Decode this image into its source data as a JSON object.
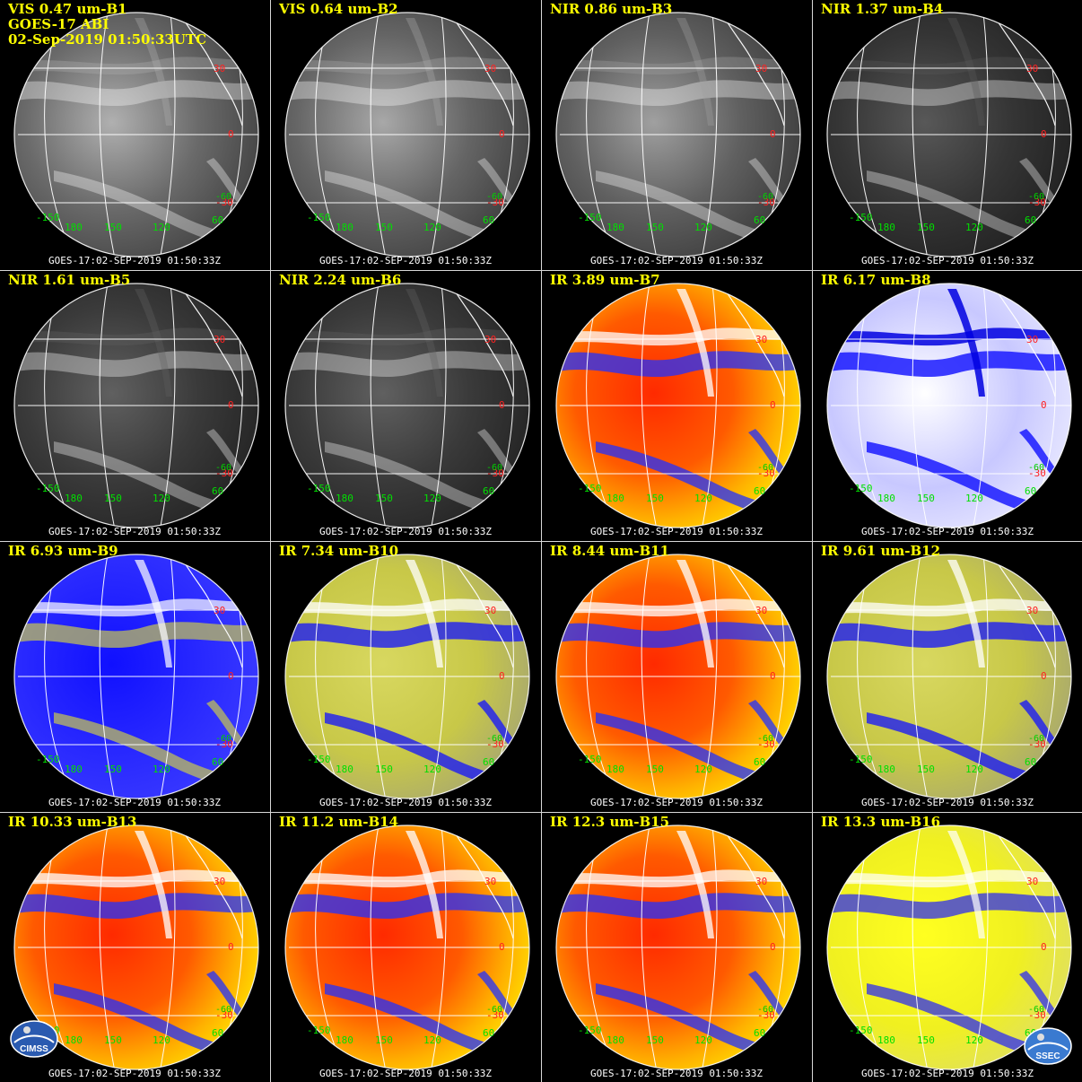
{
  "header": {
    "satellite": "GOES-17 ABI",
    "datetime": "02-Sep-2019 01:50:33UTC"
  },
  "footer_text": "GOES-17:02-SEP-2019 01:50:33Z",
  "grid_labels": {
    "lat": [
      "30",
      "0",
      "-30"
    ],
    "lat_extra": "-60",
    "lon": [
      "-150",
      "180",
      "150",
      "120",
      "60"
    ]
  },
  "logos": {
    "left": "CIMSS",
    "right": "SSEC"
  },
  "panels": [
    {
      "title": "VIS 0.47 um-B1",
      "type": "vis",
      "brightness": 0.85
    },
    {
      "title": "VIS 0.64 um-B2",
      "type": "vis",
      "brightness": 0.8
    },
    {
      "title": "NIR 0.86 um-B3",
      "type": "vis",
      "brightness": 0.75
    },
    {
      "title": "NIR 1.37 um-B4",
      "type": "vis",
      "brightness": 0.3
    },
    {
      "title": "NIR 1.61 um-B5",
      "type": "vis",
      "brightness": 0.35
    },
    {
      "title": "NIR 2.24 um-B6",
      "type": "vis",
      "brightness": 0.35
    },
    {
      "title": "IR 3.89 um-B7",
      "type": "warm"
    },
    {
      "title": "IR 6.17 um-B8",
      "type": "wv-white"
    },
    {
      "title": "IR 6.93 um-B9",
      "type": "wv-blue"
    },
    {
      "title": "IR 7.34 um-B10",
      "type": "wv-yellow"
    },
    {
      "title": "IR 8.44 um-B11",
      "type": "warm"
    },
    {
      "title": "IR 9.61 um-B12",
      "type": "wv-yellow"
    },
    {
      "title": "IR 10.33 um-B13",
      "type": "warm"
    },
    {
      "title": "IR 11.2 um-B14",
      "type": "warm"
    },
    {
      "title": "IR 12.3 um-B15",
      "type": "warm"
    },
    {
      "title": "IR 13.3 um-B16",
      "type": "yellow"
    }
  ]
}
